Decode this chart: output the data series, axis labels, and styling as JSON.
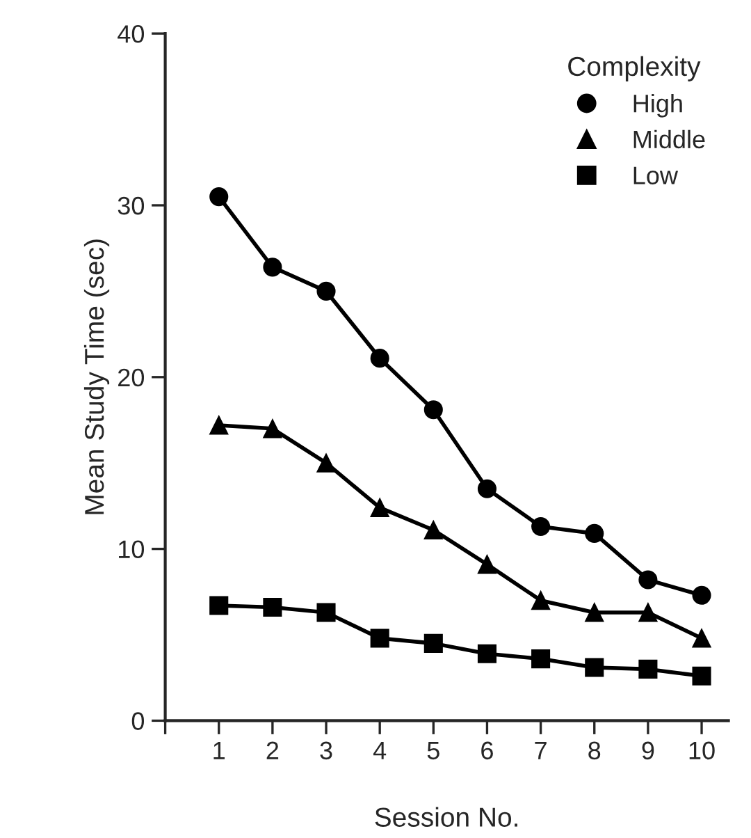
{
  "chart_data": {
    "type": "line",
    "xlabel": "Session No.",
    "ylabel": "Mean Study Time (sec)",
    "legend_title": "Complexity",
    "legend": "top right",
    "x": [
      1,
      2,
      3,
      4,
      5,
      6,
      7,
      8,
      9,
      10
    ],
    "xlim": [
      0,
      10.5
    ],
    "xticks": [
      {
        "value": 0,
        "label": null
      },
      1,
      2,
      3,
      4,
      5,
      6,
      7,
      8,
      9,
      10
    ],
    "ylim": [
      0,
      40
    ],
    "yticks": [
      0,
      10,
      20,
      30,
      40
    ],
    "grid": false,
    "series": [
      {
        "name": "High",
        "color": "#000000",
        "marker": "circle",
        "values": [
          30.5,
          26.4,
          25.0,
          21.1,
          18.1,
          13.5,
          11.3,
          10.9,
          8.2,
          7.3
        ]
      },
      {
        "name": "Middle",
        "color": "#000000",
        "marker": "triangle",
        "values": [
          17.2,
          17.0,
          15.0,
          12.4,
          11.1,
          9.1,
          7.0,
          6.3,
          6.3,
          4.8
        ]
      },
      {
        "name": "Low",
        "color": "#000000",
        "marker": "square",
        "values": [
          6.7,
          6.6,
          6.3,
          4.8,
          4.5,
          3.9,
          3.6,
          3.1,
          3.0,
          2.6
        ]
      }
    ]
  }
}
